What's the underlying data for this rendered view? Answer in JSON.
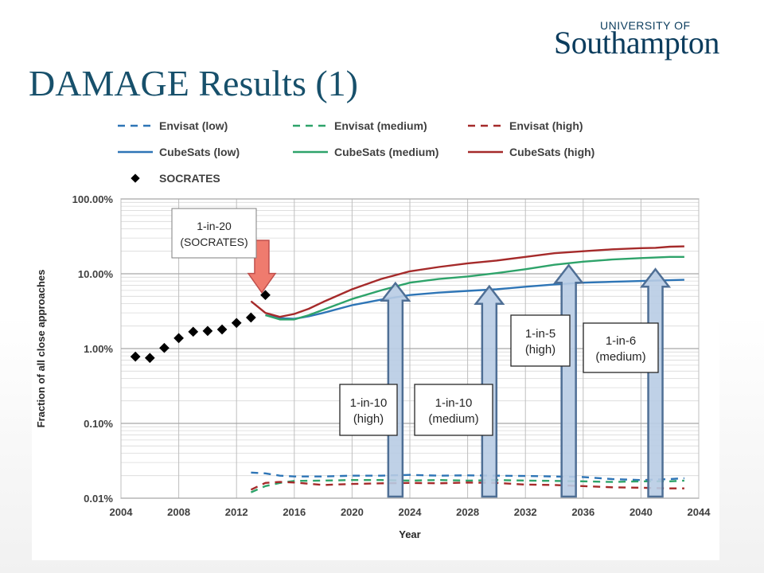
{
  "header": {
    "title": "DAMAGE Results (1)",
    "logo_top": "UNIVERSITY OF",
    "logo_main": "Southampton"
  },
  "colors": {
    "title": "#17506b",
    "logo": "#0b3c5d",
    "envisat_low": "#2e75b6",
    "envisat_medium": "#2ea36a",
    "envisat_high": "#a52a2a",
    "arrow_fill": "#b8cce4",
    "arrow_stroke": "#4f6f95",
    "socrates_arrow": "#ef7b6e"
  },
  "chart_data": {
    "type": "line",
    "title": "",
    "xlabel": "Year",
    "ylabel": "Fraction of all close approaches",
    "xlim": [
      2004,
      2044
    ],
    "ylim": [
      0.01,
      100
    ],
    "yscale": "log",
    "x_ticks": [
      "2004",
      "2008",
      "2012",
      "2016",
      "2020",
      "2024",
      "2028",
      "2032",
      "2036",
      "2040",
      "2044"
    ],
    "y_ticks": [
      {
        "value": 0.01,
        "label": "0.01%"
      },
      {
        "value": 0.1,
        "label": "0.10%"
      },
      {
        "value": 1,
        "label": "1.00%"
      },
      {
        "value": 10,
        "label": "10.00%"
      },
      {
        "value": 100,
        "label": "100.00%"
      }
    ],
    "grid": true,
    "legend_position": "top",
    "series": [
      {
        "name": "Envisat (low)",
        "style": "dashed",
        "color": "#2e75b6",
        "points": [
          [
            2013,
            0.022
          ],
          [
            2014,
            0.0215
          ],
          [
            2015,
            0.02
          ],
          [
            2016,
            0.0195
          ],
          [
            2018,
            0.0195
          ],
          [
            2020,
            0.02
          ],
          [
            2022,
            0.02
          ],
          [
            2024,
            0.0205
          ],
          [
            2026,
            0.02
          ],
          [
            2028,
            0.0202
          ],
          [
            2030,
            0.02
          ],
          [
            2032,
            0.0198
          ],
          [
            2034,
            0.0195
          ],
          [
            2036,
            0.0192
          ],
          [
            2038,
            0.018
          ],
          [
            2040,
            0.0175
          ],
          [
            2042,
            0.018
          ],
          [
            2043,
            0.0185
          ]
        ]
      },
      {
        "name": "Envisat (medium)",
        "style": "dashed",
        "color": "#2ea36a",
        "points": [
          [
            2013,
            0.012
          ],
          [
            2014,
            0.0145
          ],
          [
            2015,
            0.016
          ],
          [
            2016,
            0.017
          ],
          [
            2018,
            0.0172
          ],
          [
            2020,
            0.0175
          ],
          [
            2022,
            0.0175
          ],
          [
            2024,
            0.0172
          ],
          [
            2026,
            0.0175
          ],
          [
            2028,
            0.0172
          ],
          [
            2030,
            0.0175
          ],
          [
            2032,
            0.0172
          ],
          [
            2034,
            0.017
          ],
          [
            2036,
            0.0168
          ],
          [
            2038,
            0.0165
          ],
          [
            2040,
            0.0168
          ],
          [
            2042,
            0.0168
          ],
          [
            2043,
            0.0172
          ]
        ]
      },
      {
        "name": "Envisat (high)",
        "style": "dashed",
        "color": "#a52a2a",
        "points": [
          [
            2013,
            0.013
          ],
          [
            2014,
            0.016
          ],
          [
            2015,
            0.0165
          ],
          [
            2016,
            0.0162
          ],
          [
            2018,
            0.015
          ],
          [
            2020,
            0.0155
          ],
          [
            2022,
            0.0158
          ],
          [
            2024,
            0.016
          ],
          [
            2026,
            0.0158
          ],
          [
            2028,
            0.0162
          ],
          [
            2030,
            0.016
          ],
          [
            2032,
            0.0152
          ],
          [
            2034,
            0.015
          ],
          [
            2036,
            0.0145
          ],
          [
            2038,
            0.014
          ],
          [
            2040,
            0.0138
          ],
          [
            2042,
            0.0135
          ],
          [
            2043,
            0.0135
          ]
        ]
      },
      {
        "name": "CubeSats (low)",
        "style": "solid",
        "color": "#2e75b6",
        "points": [
          [
            2014,
            2.8
          ],
          [
            2015,
            2.55
          ],
          [
            2016,
            2.5
          ],
          [
            2017,
            2.7
          ],
          [
            2018,
            3.0
          ],
          [
            2020,
            3.8
          ],
          [
            2022,
            4.5
          ],
          [
            2024,
            5.2
          ],
          [
            2026,
            5.6
          ],
          [
            2028,
            5.9
          ],
          [
            2030,
            6.2
          ],
          [
            2032,
            6.7
          ],
          [
            2034,
            7.2
          ],
          [
            2036,
            7.6
          ],
          [
            2038,
            7.8
          ],
          [
            2040,
            8.0
          ],
          [
            2042,
            8.2
          ],
          [
            2043,
            8.3
          ]
        ]
      },
      {
        "name": "CubeSats (medium)",
        "style": "solid",
        "color": "#2ea36a",
        "points": [
          [
            2014,
            2.8
          ],
          [
            2015,
            2.45
          ],
          [
            2016,
            2.45
          ],
          [
            2017,
            2.8
          ],
          [
            2018,
            3.3
          ],
          [
            2020,
            4.6
          ],
          [
            2022,
            6.0
          ],
          [
            2024,
            7.6
          ],
          [
            2026,
            8.5
          ],
          [
            2028,
            9.2
          ],
          [
            2030,
            10.2
          ],
          [
            2032,
            11.5
          ],
          [
            2034,
            13.2
          ],
          [
            2036,
            14.5
          ],
          [
            2038,
            15.5
          ],
          [
            2040,
            16.2
          ],
          [
            2042,
            16.8
          ],
          [
            2043,
            16.8
          ]
        ]
      },
      {
        "name": "CubeSats (high)",
        "style": "solid",
        "color": "#a52a2a",
        "points": [
          [
            2013,
            4.3
          ],
          [
            2014,
            3.0
          ],
          [
            2015,
            2.65
          ],
          [
            2016,
            2.9
          ],
          [
            2017,
            3.4
          ],
          [
            2018,
            4.2
          ],
          [
            2020,
            6.2
          ],
          [
            2022,
            8.5
          ],
          [
            2024,
            10.8
          ],
          [
            2026,
            12.3
          ],
          [
            2028,
            13.8
          ],
          [
            2030,
            15.0
          ],
          [
            2032,
            16.8
          ],
          [
            2034,
            18.8
          ],
          [
            2036,
            20.0
          ],
          [
            2038,
            21.2
          ],
          [
            2040,
            22.0
          ],
          [
            2041,
            22.2
          ],
          [
            2042,
            23.0
          ],
          [
            2043,
            23.2
          ]
        ]
      },
      {
        "name": "SOCRATES",
        "style": "markers",
        "color": "#000000",
        "points": [
          [
            2005,
            0.78
          ],
          [
            2006,
            0.75
          ],
          [
            2007,
            1.02
          ],
          [
            2008,
            1.38
          ],
          [
            2009,
            1.68
          ],
          [
            2010,
            1.72
          ],
          [
            2011,
            1.8
          ],
          [
            2012,
            2.2
          ],
          [
            2013,
            2.6
          ],
          [
            2014,
            5.2
          ]
        ]
      }
    ],
    "annotations": [
      {
        "text": [
          "1-in-20",
          "(SOCRATES)"
        ],
        "style": "plain"
      },
      {
        "text": [
          "1-in-10",
          "(high)"
        ],
        "style": "box"
      },
      {
        "text": [
          "1-in-10",
          "(medium)"
        ],
        "style": "box"
      },
      {
        "text": [
          "1-in-5",
          "(high)"
        ],
        "style": "box"
      },
      {
        "text": [
          "1-in-6",
          "(medium)"
        ],
        "style": "box"
      }
    ],
    "arrows": [
      {
        "kind": "down",
        "from": 28,
        "to": 5.6,
        "x": 2013.75
      },
      {
        "kind": "up",
        "x": 2023,
        "from": 0.0105,
        "to": 7.5
      },
      {
        "kind": "up",
        "x": 2029.5,
        "from": 0.0105,
        "to": 6.8
      },
      {
        "kind": "up",
        "x": 2035,
        "from": 0.0105,
        "to": 13.0
      },
      {
        "kind": "up",
        "x": 2041,
        "from": 0.0105,
        "to": 11.5
      }
    ]
  }
}
